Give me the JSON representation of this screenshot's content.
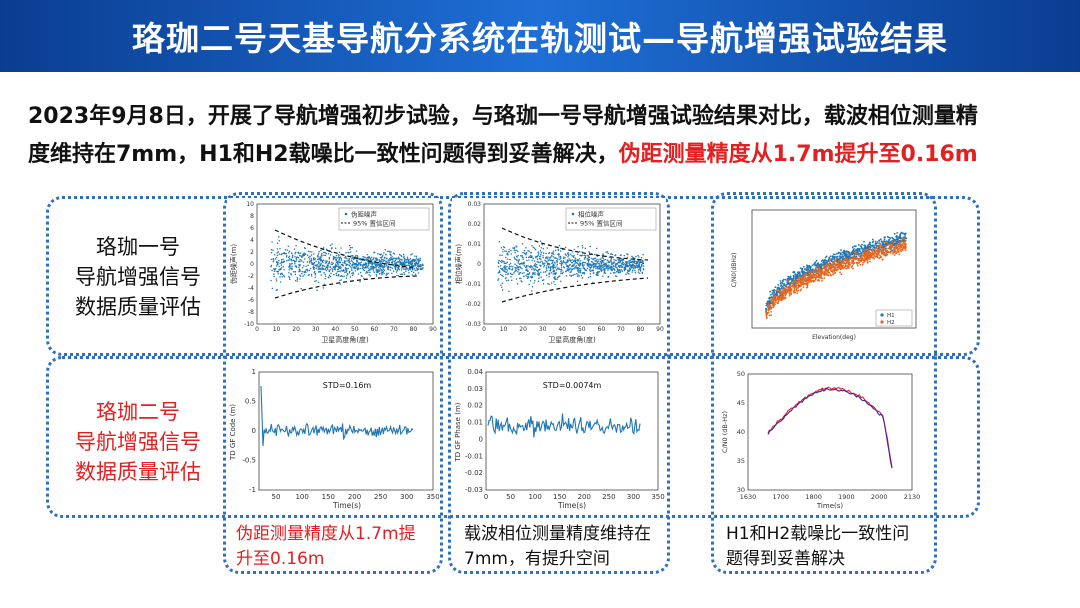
{
  "banner": {
    "title": "珞珈二号天基导航分系统在轨测试—导航增强试验结果"
  },
  "intro": {
    "line1": "2023年9月8日，开展了导航增强初步试验，与珞珈一号导航增强试验结果对比，载波相位测量精",
    "line2_black": "度维持在7mm，H1和H2载噪比一致性问题得到妥善解决，",
    "line2_red": "伪距测量精度从1.7m提升至0.16m"
  },
  "rows": {
    "top_label": [
      "珞珈一号",
      "导航增强信号",
      "数据质量评估"
    ],
    "bottom_label": [
      "珞珈二号",
      "导航增强信号",
      "数据质量评估"
    ]
  },
  "captions": {
    "c1": [
      "伪距测量精度从1.7m提",
      "升至0.16m"
    ],
    "c2": [
      "载波相位测量精度维持在",
      "7mm，有提升空间"
    ],
    "c3": [
      "H1和H2载噪比一致性问",
      "题得到妥善解决"
    ]
  },
  "colors": {
    "accent_blue": "#0a3d91",
    "highlight_red": "#e32020",
    "series_blue": "#1f77b4",
    "series_orange": "#e8641b",
    "series_purple": "#4b1fa0"
  },
  "chart_data": [
    {
      "type": "scatter",
      "title": "",
      "xlabel": "卫星高度角(度)",
      "ylabel": "伪距噪声(m)",
      "xlim": [
        0,
        90
      ],
      "ylim": [
        -10,
        10
      ],
      "xticks": [
        "0",
        "10",
        "20",
        "30",
        "40",
        "50",
        "60",
        "70",
        "80",
        "90"
      ],
      "yticks": [
        "10",
        "8",
        "6",
        "4",
        "2",
        "0",
        "-2",
        "-4",
        "-6",
        "-8",
        "-10"
      ],
      "legend": [
        "伪距噪声",
        "95% 置信区间"
      ],
      "legend_position": "top-right"
    },
    {
      "type": "scatter",
      "title": "",
      "xlabel": "卫星高度角(度)",
      "ylabel": "相位噪声(m)",
      "xlim": [
        0,
        90
      ],
      "ylim": [
        -0.03,
        0.03
      ],
      "xticks": [
        "0",
        "10",
        "20",
        "30",
        "40",
        "50",
        "60",
        "70",
        "80",
        "90"
      ],
      "yticks": [
        "0.03",
        "0.02",
        "0.01",
        "0",
        "-0.01",
        "-0.02",
        "-0.03"
      ],
      "legend": [
        "相位噪声",
        "95% 置信区间"
      ],
      "legend_position": "top-right"
    },
    {
      "type": "scatter",
      "title": "",
      "xlabel": "Elevation(deg)",
      "ylabel": "C/N0(dBHz)",
      "series": [
        {
          "name": "H1"
        },
        {
          "name": "H2"
        }
      ],
      "legend_position": "bottom-right"
    },
    {
      "type": "line",
      "title": "STD=0.16m",
      "xlabel": "Time(s)",
      "ylabel": "TD GF Code (m)",
      "xlim": [
        0,
        350
      ],
      "ylim": [
        -1,
        1
      ],
      "xticks": [
        "50",
        "100",
        "150",
        "200",
        "250",
        "300",
        "350"
      ],
      "yticks": [
        "1",
        "0.5",
        "0",
        "-0.5",
        "-1"
      ]
    },
    {
      "type": "line",
      "title": "STD=0.0074m",
      "xlabel": "Time(s)",
      "ylabel": "TD GF Phase (m)",
      "xlim": [
        0,
        350
      ],
      "ylim": [
        -0.03,
        0.04
      ],
      "xticks": [
        "0",
        "50",
        "100",
        "150",
        "200",
        "250",
        "300",
        "350"
      ],
      "yticks": [
        "0.04",
        "0.03",
        "0.02",
        "0.01",
        "0",
        "-0.01",
        "-0.02",
        "-0.03"
      ]
    },
    {
      "type": "line",
      "title": "",
      "xlabel": "Time(s)",
      "ylabel": "C/N0 (dB-Hz)",
      "xlim": [
        1630,
        2130
      ],
      "ylim": [
        30,
        50
      ],
      "xticks": [
        "1630",
        "1700",
        "1800",
        "1900",
        "2000",
        "2130"
      ],
      "yticks": [
        "50",
        "45",
        "40",
        "35",
        "30"
      ]
    }
  ]
}
